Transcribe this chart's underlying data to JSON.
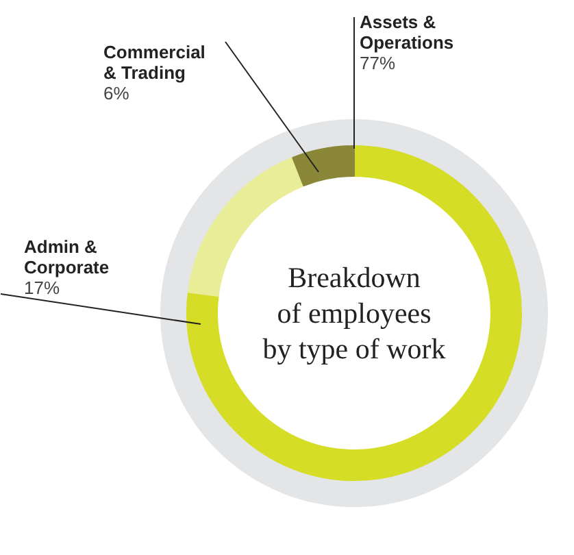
{
  "chart_data": {
    "type": "donut",
    "title": "Breakdown\nof employees\nby type of work",
    "categories": [
      "Assets & Operations",
      "Admin & Corporate",
      "Commercial & Trading"
    ],
    "values": [
      77,
      17,
      6
    ],
    "value_labels": [
      "77%",
      "17%",
      "6%"
    ],
    "colors": [
      "#d5dd26",
      "#e9ed98",
      "#8a8738"
    ]
  }
}
